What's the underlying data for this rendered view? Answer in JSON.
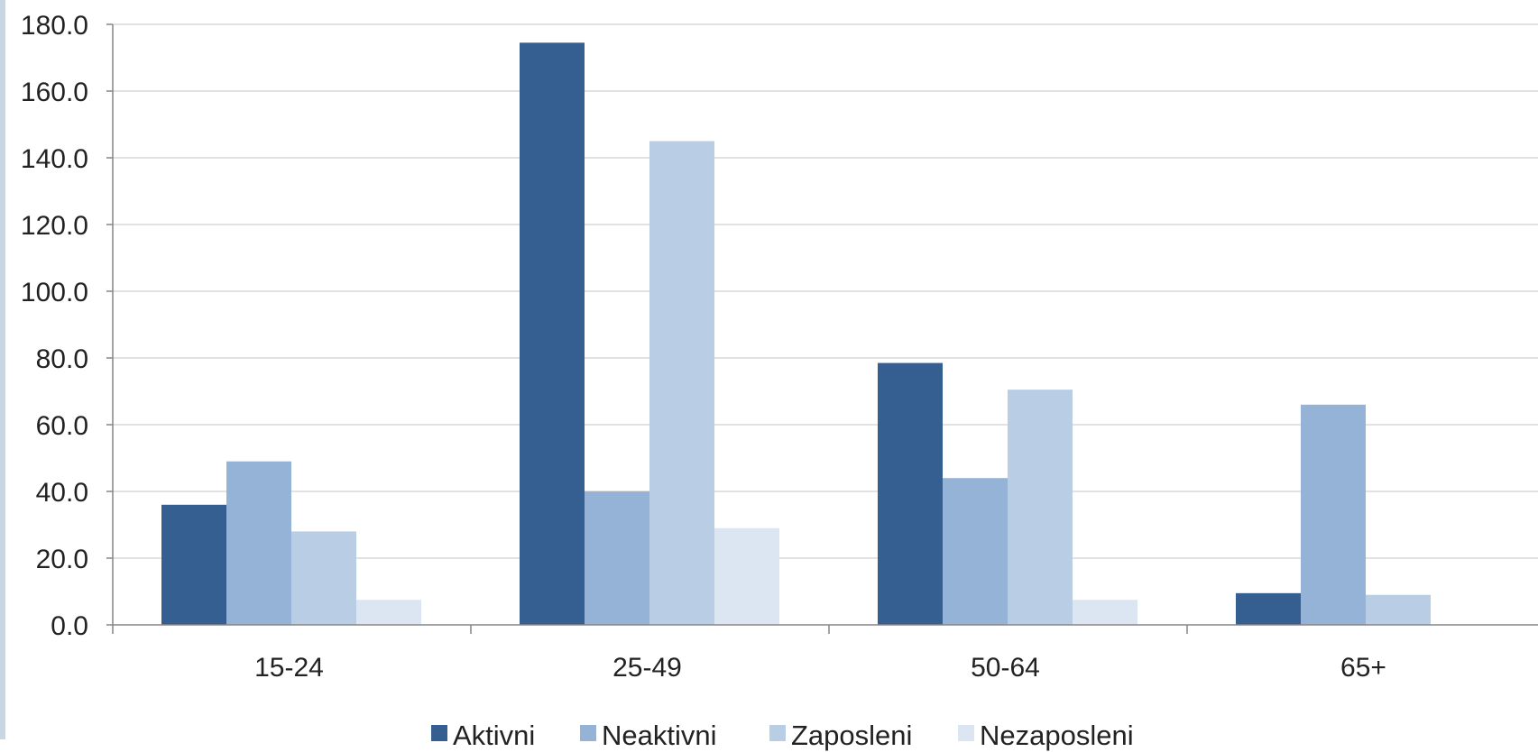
{
  "chart_data": {
    "type": "bar",
    "title": "",
    "xlabel": "",
    "ylabel": "",
    "ylim": [
      0,
      180
    ],
    "ytick_step": 20,
    "ytick_labels": [
      "0.0",
      "20.0",
      "40.0",
      "60.0",
      "80.0",
      "100.0",
      "120.0",
      "140.0",
      "160.0",
      "180.0"
    ],
    "grid": true,
    "legend_position": "bottom",
    "categories": [
      "15-24",
      "25-49",
      "50-64",
      "65+"
    ],
    "series": [
      {
        "name": "Aktivni",
        "color": "#355f91",
        "values": [
          36.0,
          174.5,
          78.5,
          9.5
        ]
      },
      {
        "name": "Neaktivni",
        "color": "#95b3d7",
        "values": [
          49.0,
          40.0,
          44.0,
          66.0
        ]
      },
      {
        "name": "Zaposleni",
        "color": "#b9cde5",
        "values": [
          28.0,
          145.0,
          70.5,
          9.0
        ]
      },
      {
        "name": "Nezaposleni",
        "color": "#dce6f2",
        "values": [
          7.5,
          29.0,
          7.5,
          0
        ]
      }
    ]
  }
}
